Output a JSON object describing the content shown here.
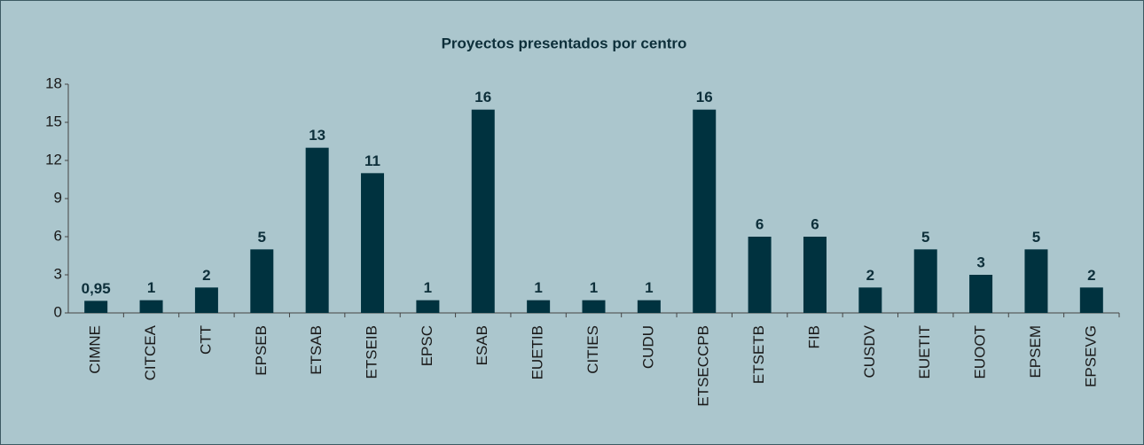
{
  "chart_data": {
    "type": "bar",
    "title": "Proyectos presentados por centro",
    "categories": [
      "CIMNE",
      "CITCEA",
      "CTT",
      "EPSEB",
      "ETSAB",
      "ETSEIB",
      "EPSC",
      "ESAB",
      "EUETIB",
      "CITIES",
      "CUDU",
      "ETSECCPB",
      "ETSETB",
      "FIB",
      "CUSDV",
      "EUETIT",
      "EUOOT",
      "EPSEM",
      "EPSEVG"
    ],
    "values": [
      0.95,
      1,
      2,
      5,
      13,
      11,
      1,
      16,
      1,
      1,
      1,
      16,
      6,
      6,
      2,
      5,
      3,
      5,
      2
    ],
    "value_labels": [
      "0,95",
      "1",
      "2",
      "5",
      "13",
      "11",
      "1",
      "16",
      "1",
      "1",
      "1",
      "16",
      "6",
      "6",
      "2",
      "5",
      "3",
      "5",
      "2"
    ],
    "color": "#00323f",
    "ylim": [
      0,
      18
    ],
    "yticks": [
      0,
      3,
      6,
      9,
      12,
      15,
      18
    ],
    "grid": false
  }
}
